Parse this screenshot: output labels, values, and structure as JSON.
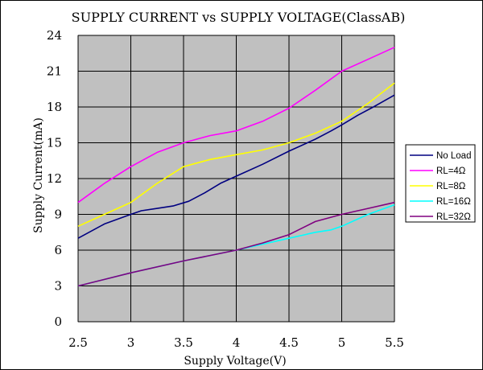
{
  "chart_data": {
    "type": "line",
    "title": "SUPPLY CURRENT vs SUPPLY VOLTAGE(ClassAB)",
    "xlabel": "Supply Voltage(V)",
    "ylabel": "Supply Current(mA)",
    "xlim": [
      2.5,
      5.5
    ],
    "ylim": [
      0,
      24
    ],
    "x_ticks": [
      "2.5",
      "3",
      "3.5",
      "4",
      "4.5",
      "5",
      "5.5"
    ],
    "y_ticks": [
      "0",
      "3",
      "6",
      "9",
      "12",
      "15",
      "18",
      "21",
      "24"
    ],
    "grid": true,
    "plot_background": "#c0c0c0",
    "legend_position": "right",
    "series": [
      {
        "name": "No Load",
        "color": "#000080",
        "x": [
          2.5,
          2.75,
          3.0,
          3.1,
          3.25,
          3.4,
          3.55,
          3.7,
          3.85,
          4.0,
          4.25,
          4.5,
          4.75,
          4.9,
          5.0,
          5.15,
          5.3,
          5.5
        ],
        "y": [
          7.0,
          8.2,
          9.0,
          9.3,
          9.5,
          9.7,
          10.1,
          10.8,
          11.6,
          12.2,
          13.2,
          14.3,
          15.3,
          16.0,
          16.5,
          17.3,
          18.0,
          19.0
        ]
      },
      {
        "name": "RL=4Ω",
        "color": "#ff00ff",
        "x": [
          2.5,
          2.75,
          3.0,
          3.25,
          3.5,
          3.75,
          4.0,
          4.25,
          4.5,
          4.75,
          5.0,
          5.25,
          5.5
        ],
        "y": [
          10.0,
          11.6,
          13.0,
          14.2,
          15.0,
          15.6,
          16.0,
          16.8,
          17.9,
          19.4,
          21.0,
          22.0,
          23.0
        ]
      },
      {
        "name": "RL=8Ω",
        "color": "#ffff00",
        "x": [
          2.5,
          2.75,
          3.0,
          3.25,
          3.5,
          3.75,
          4.0,
          4.25,
          4.5,
          4.75,
          5.0,
          5.25,
          5.5
        ],
        "y": [
          8.0,
          9.0,
          10.0,
          11.6,
          13.0,
          13.6,
          14.0,
          14.4,
          15.0,
          15.8,
          16.8,
          18.3,
          20.0
        ]
      },
      {
        "name": "RL=16Ω",
        "color": "#00ffff",
        "x": [
          2.5,
          3.0,
          3.5,
          4.0,
          4.25,
          4.5,
          4.75,
          4.9,
          5.0,
          5.25,
          5.5
        ],
        "y": [
          3.0,
          4.1,
          5.1,
          6.0,
          6.5,
          7.0,
          7.5,
          7.7,
          8.0,
          9.0,
          9.8
        ]
      },
      {
        "name": "RL=32Ω",
        "color": "#800080",
        "x": [
          2.5,
          3.0,
          3.5,
          4.0,
          4.25,
          4.5,
          4.75,
          5.0,
          5.25,
          5.5
        ],
        "y": [
          3.0,
          4.1,
          5.1,
          6.0,
          6.6,
          7.3,
          8.4,
          9.0,
          9.5,
          10.0
        ]
      }
    ]
  }
}
